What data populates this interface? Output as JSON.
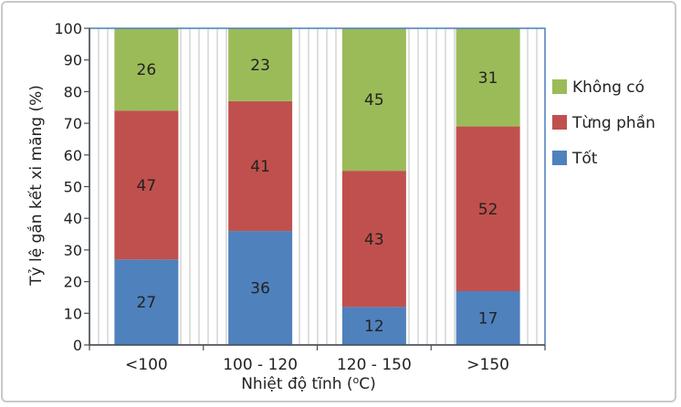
{
  "chart_data": {
    "type": "bar",
    "stacked": true,
    "categories": [
      "<100",
      "100 - 120",
      "120 - 150",
      ">150"
    ],
    "series": [
      {
        "name": "Tốt",
        "values": [
          27,
          36,
          12,
          17
        ],
        "color": "#4f81bd"
      },
      {
        "name": "Từng phần",
        "values": [
          47,
          41,
          43,
          52
        ],
        "color": "#c0504d"
      },
      {
        "name": "Không có",
        "values": [
          26,
          23,
          45,
          31
        ],
        "color": "#9bbb59"
      }
    ],
    "xlabel": "Nhiệt độ tĩnh (oC)",
    "xlabel_parts": {
      "before": "Nhiệt độ tĩnh (",
      "sup": "o",
      "after": "C)"
    },
    "ylabel": "Tỷ lệ gắn kết xi măng (%)",
    "ylim": [
      0,
      100
    ],
    "yticks": [
      0,
      10,
      20,
      30,
      40,
      50,
      60,
      70,
      80,
      90,
      100
    ],
    "grid": "vertical",
    "legend_position": "right"
  }
}
